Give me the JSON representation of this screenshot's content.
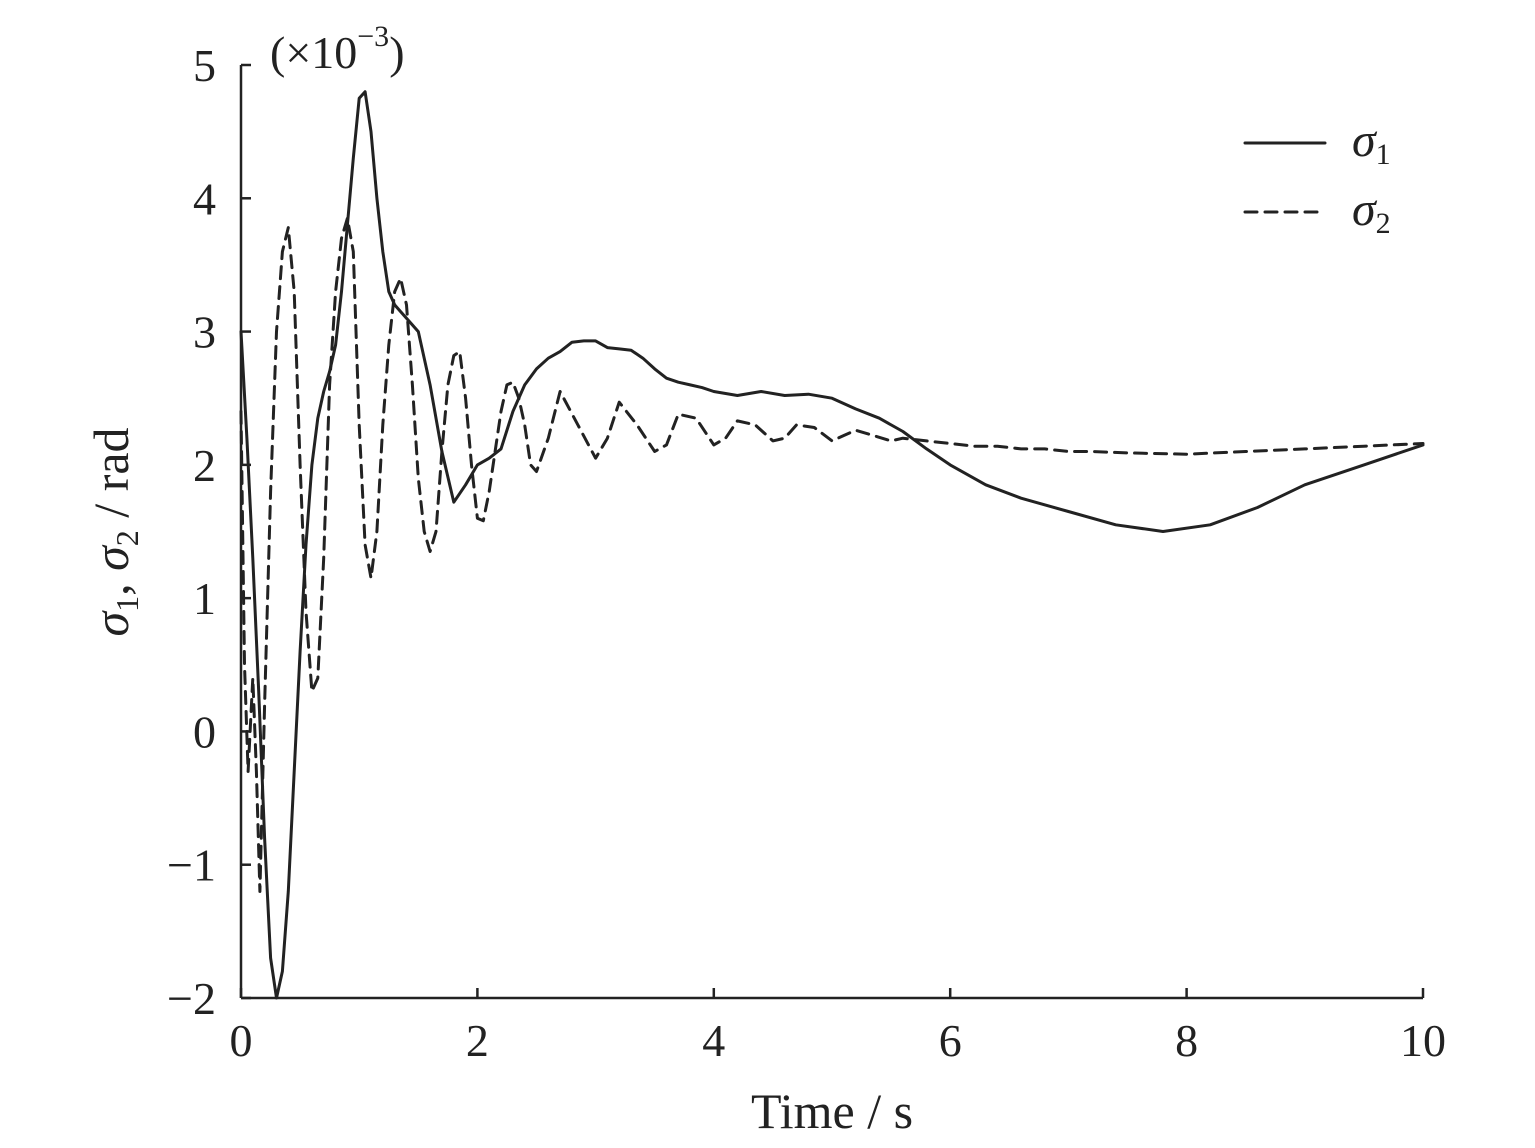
{
  "chart_data": {
    "type": "line",
    "multiplier_label": {
      "open": "(×10",
      "exp": "−3",
      "close": ")"
    },
    "xlabel": "Time / s",
    "ylabel": {
      "sym": "σ",
      "sub1": "1",
      "sep": ", ",
      "sub2": "2",
      "unit": " / rad"
    },
    "xlim": [
      0,
      10
    ],
    "ylim": [
      -2,
      5
    ],
    "x_ticks": [
      0,
      2,
      4,
      6,
      8,
      10
    ],
    "x_tick_labels": [
      "0",
      "2",
      "4",
      "6",
      "8",
      "10"
    ],
    "y_ticks": [
      -2,
      -1,
      0,
      1,
      2,
      3,
      4,
      5
    ],
    "y_tick_labels": [
      "−2",
      "−1",
      "0",
      "1",
      "2",
      "3",
      "4",
      "5"
    ],
    "grid": false,
    "legend_position": "top-right",
    "series": [
      {
        "name": "σ1",
        "name_symbol": "σ",
        "name_sub": "1",
        "style": "solid",
        "x": [
          0,
          0.05,
          0.1,
          0.15,
          0.2,
          0.25,
          0.3,
          0.35,
          0.4,
          0.45,
          0.5,
          0.55,
          0.6,
          0.65,
          0.7,
          0.75,
          0.8,
          0.85,
          0.9,
          0.95,
          1.0,
          1.05,
          1.1,
          1.15,
          1.2,
          1.25,
          1.3,
          1.35,
          1.4,
          1.5,
          1.6,
          1.7,
          1.8,
          1.9,
          2.0,
          2.1,
          2.2,
          2.3,
          2.4,
          2.5,
          2.6,
          2.7,
          2.8,
          2.9,
          3.0,
          3.1,
          3.2,
          3.3,
          3.4,
          3.5,
          3.6,
          3.7,
          3.8,
          3.9,
          4.0,
          4.2,
          4.4,
          4.6,
          4.8,
          5.0,
          5.2,
          5.4,
          5.6,
          5.8,
          6.0,
          6.3,
          6.6,
          7.0,
          7.4,
          7.8,
          8.2,
          8.6,
          9.0,
          9.5,
          10.0
        ],
        "values": [
          3.0,
          2.2,
          1.3,
          0.3,
          -0.8,
          -1.7,
          -2.0,
          -1.8,
          -1.2,
          -0.3,
          0.6,
          1.4,
          2.0,
          2.35,
          2.55,
          2.7,
          2.9,
          3.3,
          3.8,
          4.3,
          4.75,
          4.8,
          4.5,
          4.0,
          3.6,
          3.3,
          3.2,
          3.15,
          3.1,
          3.0,
          2.6,
          2.1,
          1.72,
          1.85,
          2.0,
          2.05,
          2.12,
          2.4,
          2.6,
          2.72,
          2.8,
          2.85,
          2.92,
          2.93,
          2.93,
          2.88,
          2.87,
          2.86,
          2.8,
          2.72,
          2.65,
          2.62,
          2.6,
          2.58,
          2.55,
          2.52,
          2.55,
          2.52,
          2.53,
          2.5,
          2.42,
          2.35,
          2.25,
          2.12,
          2.0,
          1.85,
          1.75,
          1.65,
          1.55,
          1.5,
          1.55,
          1.68,
          1.85,
          2.0,
          2.15
        ]
      },
      {
        "name": "σ2",
        "name_symbol": "σ",
        "name_sub": "2",
        "style": "dashed",
        "x": [
          0,
          0.03,
          0.06,
          0.1,
          0.13,
          0.16,
          0.2,
          0.25,
          0.3,
          0.35,
          0.4,
          0.45,
          0.5,
          0.55,
          0.6,
          0.65,
          0.7,
          0.75,
          0.8,
          0.85,
          0.9,
          0.95,
          1.0,
          1.05,
          1.1,
          1.15,
          1.2,
          1.25,
          1.3,
          1.35,
          1.4,
          1.45,
          1.5,
          1.55,
          1.6,
          1.65,
          1.7,
          1.75,
          1.8,
          1.85,
          1.9,
          1.95,
          2.0,
          2.05,
          2.1,
          2.15,
          2.2,
          2.25,
          2.3,
          2.35,
          2.4,
          2.45,
          2.5,
          2.6,
          2.7,
          2.85,
          3.0,
          3.1,
          3.2,
          3.35,
          3.5,
          3.6,
          3.7,
          3.85,
          4.0,
          4.1,
          4.2,
          4.35,
          4.5,
          4.6,
          4.7,
          4.85,
          5.0,
          5.1,
          5.2,
          5.35,
          5.5,
          5.6,
          5.8,
          6.0,
          6.2,
          6.4,
          6.6,
          6.8,
          7.0,
          7.2,
          7.5,
          8.0,
          8.5,
          9.0,
          9.5,
          10.0
        ],
        "values": [
          2.4,
          0.5,
          -0.3,
          0.4,
          -0.3,
          -1.2,
          0.2,
          1.8,
          3.0,
          3.6,
          3.78,
          3.3,
          2.0,
          0.9,
          0.3,
          0.4,
          1.3,
          2.6,
          3.3,
          3.7,
          3.85,
          3.6,
          2.3,
          1.4,
          1.15,
          1.5,
          2.3,
          2.9,
          3.3,
          3.4,
          3.2,
          2.6,
          1.9,
          1.5,
          1.35,
          1.5,
          2.1,
          2.6,
          2.82,
          2.85,
          2.5,
          2.0,
          1.6,
          1.58,
          1.8,
          2.1,
          2.4,
          2.6,
          2.62,
          2.5,
          2.3,
          2.0,
          1.95,
          2.2,
          2.55,
          2.3,
          2.05,
          2.2,
          2.47,
          2.3,
          2.1,
          2.15,
          2.38,
          2.35,
          2.15,
          2.2,
          2.33,
          2.3,
          2.18,
          2.2,
          2.3,
          2.28,
          2.18,
          2.22,
          2.26,
          2.22,
          2.18,
          2.2,
          2.18,
          2.16,
          2.14,
          2.14,
          2.12,
          2.12,
          2.1,
          2.1,
          2.09,
          2.08,
          2.1,
          2.12,
          2.14,
          2.16
        ]
      }
    ]
  }
}
